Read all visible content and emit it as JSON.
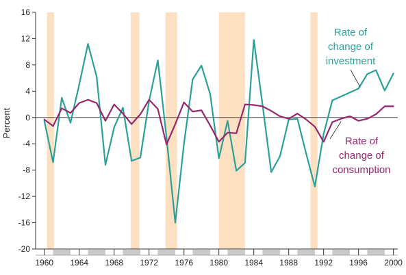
{
  "chart_data": {
    "type": "line",
    "ylabel": "Percent",
    "xlim": [
      1959,
      2000.5
    ],
    "ylim": [
      -20,
      16
    ],
    "yticks": [
      16,
      12,
      8,
      4,
      0,
      -4,
      -8,
      -12,
      -16,
      -20
    ],
    "xticks": [
      1960,
      1964,
      1968,
      1972,
      1976,
      1980,
      1984,
      1988,
      1992,
      1996,
      2000
    ],
    "grid": false,
    "zero_line": true,
    "recessions": [
      [
        1960.3,
        1961.1
      ],
      [
        1969.9,
        1970.9
      ],
      [
        1973.9,
        1975.2
      ],
      [
        1980.0,
        1983.0
      ],
      [
        1990.5,
        1991.3
      ]
    ],
    "x": [
      1960,
      1961,
      1962,
      1963,
      1964,
      1965,
      1966,
      1967,
      1968,
      1969,
      1970,
      1971,
      1972,
      1973,
      1974,
      1975,
      1976,
      1977,
      1978,
      1979,
      1980,
      1981,
      1982,
      1983,
      1984,
      1985,
      1986,
      1987,
      1988,
      1989,
      1990,
      1991,
      1992,
      1993,
      1994,
      1995,
      1996,
      1997,
      1998,
      1999,
      2000
    ],
    "series": [
      {
        "name": "Rate of change of investment",
        "label_lines": [
          "Rate of",
          "change of",
          "investment"
        ],
        "color": "#2aa198",
        "values": [
          -0.5,
          -6.8,
          3.0,
          -0.8,
          5.0,
          11.2,
          6.2,
          -7.2,
          -1.5,
          1.5,
          -6.6,
          -6.1,
          2.5,
          8.7,
          -3.0,
          -16.0,
          -4.0,
          5.8,
          7.9,
          3.6,
          -6.2,
          -0.5,
          -8.1,
          -6.9,
          11.8,
          2.0,
          -8.3,
          -5.9,
          -0.3,
          -0.2,
          -5.5,
          -10.5,
          -2.5,
          2.6,
          3.2,
          3.8,
          4.4,
          6.6,
          7.2,
          4.1,
          6.7
        ]
      },
      {
        "name": "Rate of change of consumption",
        "label_lines": [
          "Rate of",
          "change of",
          "consumption"
        ],
        "color": "#96266d",
        "values": [
          -0.3,
          -1.3,
          1.4,
          0.7,
          2.2,
          2.7,
          2.2,
          -0.5,
          2.0,
          0.6,
          -1.0,
          0.5,
          2.7,
          1.3,
          -4.1,
          -1.0,
          2.3,
          0.9,
          1.1,
          -1.2,
          -3.7,
          -2.3,
          -2.4,
          2.0,
          1.9,
          1.7,
          1.0,
          0.2,
          -0.2,
          0.6,
          -0.3,
          -1.4,
          -3.7,
          -0.7,
          -0.2,
          0.2,
          -0.5,
          -0.2,
          0.5,
          1.7,
          1.7
        ]
      }
    ]
  }
}
